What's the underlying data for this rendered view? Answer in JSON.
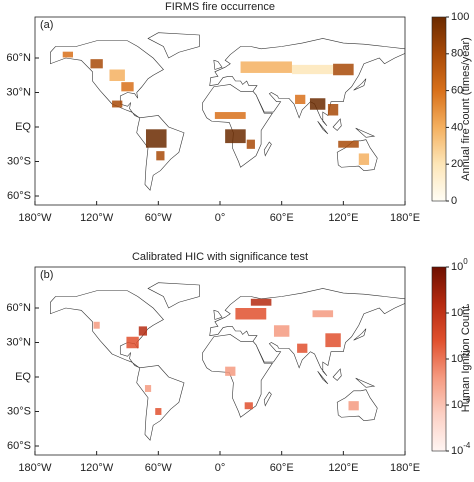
{
  "panels": [
    {
      "title": "FIRMS fire occurrence",
      "panel_label": "(a)",
      "lat_ticks": [
        {
          "value": 60,
          "label": "60°N"
        },
        {
          "value": 30,
          "label": "30°N"
        },
        {
          "value": 0,
          "label": "EQ"
        },
        {
          "value": -30,
          "label": "30°S"
        },
        {
          "value": -60,
          "label": "60°S"
        }
      ],
      "lon_ticks": [
        {
          "value": -180,
          "label": "180°W"
        },
        {
          "value": -120,
          "label": "120°W"
        },
        {
          "value": -60,
          "label": "60°W"
        },
        {
          "value": 0,
          "label": "0°"
        },
        {
          "value": 60,
          "label": "60°E"
        },
        {
          "value": 120,
          "label": "120°E"
        },
        {
          "value": 180,
          "label": "180°E"
        }
      ],
      "colorbar": {
        "label": "Annual fire count (times/year)",
        "scale": "linear",
        "lim": [
          0,
          100
        ],
        "ticks": [
          0,
          20,
          40,
          60,
          80,
          100
        ],
        "colors": [
          "#fffdf5",
          "#fde6b8",
          "#f4b060",
          "#d8701a",
          "#a84a08",
          "#6b2a00"
        ]
      }
    },
    {
      "title": "Calibrated HIC with significance test",
      "panel_label": "(b)",
      "lat_ticks": [
        {
          "value": 60,
          "label": "60°N"
        },
        {
          "value": 30,
          "label": "30°N"
        },
        {
          "value": 0,
          "label": "EQ"
        },
        {
          "value": -30,
          "label": "30°S"
        },
        {
          "value": -60,
          "label": "60°S"
        }
      ],
      "lon_ticks": [
        {
          "value": -180,
          "label": "180°W"
        },
        {
          "value": -120,
          "label": "120°W"
        },
        {
          "value": -60,
          "label": "60°W"
        },
        {
          "value": 0,
          "label": "0°"
        },
        {
          "value": 60,
          "label": "60°E"
        },
        {
          "value": 120,
          "label": "120°E"
        },
        {
          "value": 180,
          "label": "180°E"
        }
      ],
      "colorbar": {
        "label": "Human Ignition Count",
        "scale": "log",
        "lim": [
          0.0001,
          1
        ],
        "ticks": [
          {
            "value": 1,
            "label": "10",
            "exp": "0"
          },
          {
            "value": 0.1,
            "label": "10",
            "exp": "-1"
          },
          {
            "value": 0.01,
            "label": "10",
            "exp": "-2"
          },
          {
            "value": 0.001,
            "label": "10",
            "exp": "-3"
          },
          {
            "value": 0.0001,
            "label": "10",
            "exp": "-4"
          }
        ],
        "colors": [
          "#fff5f3",
          "#fcd0c4",
          "#f59a80",
          "#e0502e",
          "#b52a10",
          "#6e1000"
        ]
      }
    }
  ]
}
